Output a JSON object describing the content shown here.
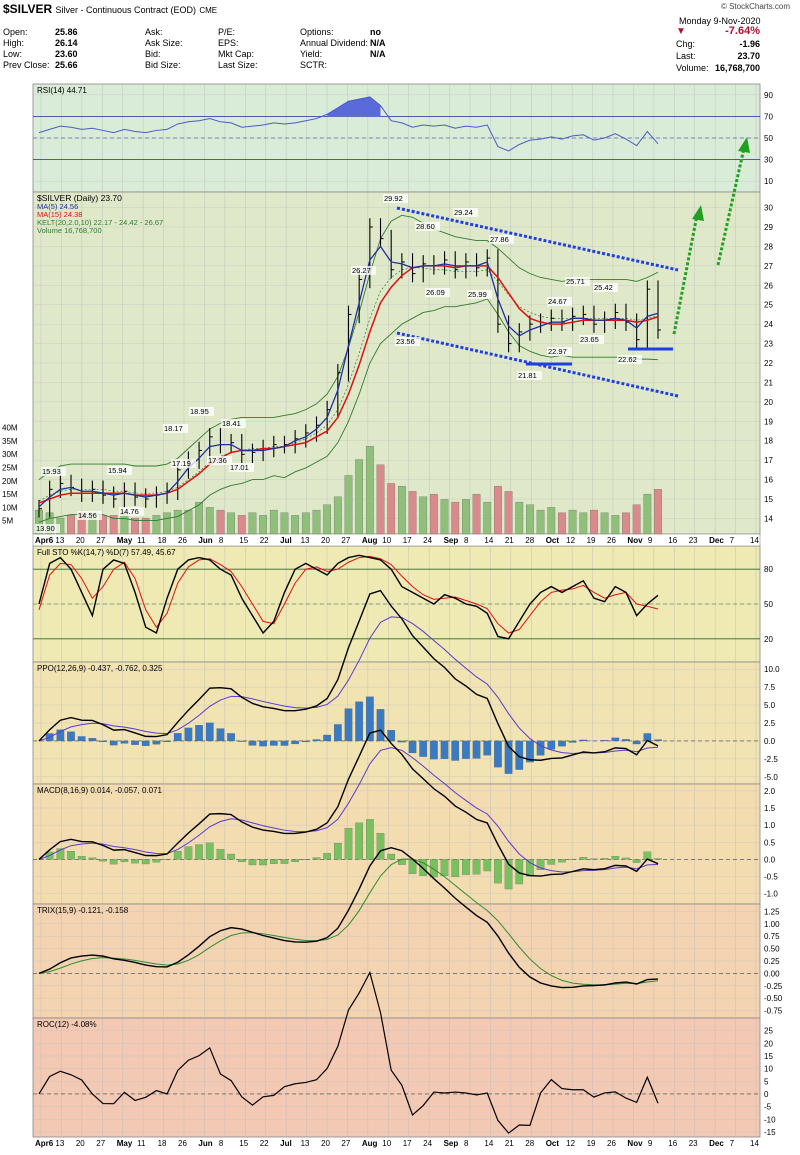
{
  "header": {
    "symbol": "$SILVER",
    "description": "Silver - Continuous Contract (EOD)",
    "exchange": "CME",
    "watermark": "© StockCharts.com",
    "date": "Monday  9-Nov-2020",
    "change_pct": "-7.64%",
    "chg_label": "Chg:",
    "chg_value": "-1.96",
    "last_label": "Last:",
    "last_value": "23.70",
    "volume_label": "Volume:",
    "volume_value": "16,768,700",
    "quote": [
      {
        "label": "Open:",
        "value": "25.86"
      },
      {
        "label": "High:",
        "value": "26.14"
      },
      {
        "label": "Low:",
        "value": "23.60"
      },
      {
        "label": "Prev Close:",
        "value": "25.66"
      }
    ],
    "ask": [
      {
        "label": "Ask:",
        "value": ""
      },
      {
        "label": "Ask Size:",
        "value": ""
      },
      {
        "label": "Bid:",
        "value": ""
      },
      {
        "label": "Bid Size:",
        "value": ""
      }
    ],
    "fund": [
      {
        "label": "P/E:",
        "value": ""
      },
      {
        "label": "EPS:",
        "value": ""
      },
      {
        "label": "Mkt Cap:",
        "value": ""
      },
      {
        "label": "Last Size:",
        "value": ""
      }
    ],
    "opts": [
      {
        "label": "Options:",
        "value": "no"
      },
      {
        "label": "Annual Dividend:",
        "value": "N/A"
      },
      {
        "label": "Yield:",
        "value": "N/A"
      },
      {
        "label": "SCTR:",
        "value": ""
      }
    ]
  },
  "colors": {
    "rsi_bg": "#d9ecd8",
    "price_bg": "#dfe9c9",
    "sto_bg": "#efeab4",
    "ppo_bg": "#f2e3b2",
    "macd_bg": "#f3dcb0",
    "trix_bg": "#f4d3b0",
    "roc_bg": "#f3c9b4",
    "price_bar": "#000000",
    "ma5": "#1f2fa0",
    "ma15": "#e01010",
    "kelt": "#2f7a2f",
    "vol_up": "#8fbf7a",
    "vol_down": "#d98a8a",
    "channel": "#1f3fe0",
    "arrow": "#22a022",
    "rsi_line": "#4a5cc8",
    "rsi_fill": "#5a6ad8",
    "sto_k": "#000000",
    "sto_d": "#e01010",
    "ppo_hist": "#3a7ac0",
    "macd_hist": "#7ac060",
    "signal": "#5a3ad0",
    "trix_signal": "#2f8a2f"
  },
  "x_axis": {
    "labels": [
      "Apr6",
      "13",
      "20",
      "27",
      "May",
      "11",
      "18",
      "26",
      "Jun",
      "8",
      "15",
      "22",
      "Jul",
      "13",
      "20",
      "27",
      "Aug",
      "10",
      "17",
      "24",
      "Sep",
      "8",
      "14",
      "21",
      "28",
      "Oct",
      "12",
      "19",
      "26",
      "Nov",
      "9",
      "16",
      "23",
      "Dec",
      "7",
      "14"
    ],
    "bold": [
      "Apr6",
      "May",
      "Jun",
      "Jul",
      "Aug",
      "Sep",
      "Oct",
      "Nov",
      "Dec"
    ]
  },
  "panels": {
    "rsi": {
      "legend": "RSI(14) 44.71",
      "ticks": [
        "90",
        "70",
        "50",
        "30",
        "10"
      ],
      "overbought": "70",
      "oversold": "30"
    },
    "price": {
      "legend": [
        {
          "text": "$SILVER (Daily) 23.70",
          "color": "#000000"
        },
        {
          "text": "MA(5) 24.56",
          "color": "#1f2fa0"
        },
        {
          "text": "MA(15) 24.38",
          "color": "#e01010"
        },
        {
          "text": "KELT(20,2.0,10) 22.17 - 24.42 - 26.67",
          "color": "#2f7a2f"
        },
        {
          "text": "Volume 16,768,700",
          "color": "#2f7a2f"
        }
      ],
      "ticks": [
        "30",
        "29",
        "28",
        "27",
        "26",
        "25",
        "24",
        "23",
        "22",
        "21",
        "20",
        "19",
        "18",
        "17",
        "16",
        "15",
        "14"
      ],
      "vol_ticks": [
        "40M",
        "35M",
        "30M",
        "25M",
        "20M",
        "15M",
        "10M",
        "5M"
      ]
    },
    "sto": {
      "legend": "Full STO %K(14,7) %D(7) 57.49, 45.67",
      "ticks": [
        "80",
        "50",
        "20"
      ]
    },
    "ppo": {
      "legend": "PPO(12,26,9) -0.437, -0.762, 0.325",
      "ticks": [
        "10.0",
        "7.5",
        "5.0",
        "2.5",
        "0.0",
        "-2.5",
        "-5.0"
      ]
    },
    "macd": {
      "legend": "MACD(8,16,9) 0.014, -0.057, 0.071",
      "ticks": [
        "2.0",
        "1.5",
        "1.0",
        "0.5",
        "0.0",
        "-0.5",
        "-1.0"
      ]
    },
    "trix": {
      "legend": "TRIX(15,9) -0.121, -0.158",
      "ticks": [
        "1.25",
        "1.00",
        "0.75",
        "0.50",
        "0.25",
        "0.00",
        "-0.25",
        "-0.50",
        "-0.75"
      ]
    },
    "roc": {
      "legend": "ROC(12) -4.08%",
      "ticks": [
        "25",
        "20",
        "15",
        "10",
        "5",
        "0",
        "-5",
        "-10",
        "-15"
      ]
    }
  },
  "chart_data": {
    "type": "line",
    "title": "$SILVER Silver - Continuous Contract (EOD) CME",
    "x_start": "2020-04-06",
    "x_end": "2020-11-09",
    "price_labels": [
      "13.90",
      "15.93",
      "14.56",
      "15.94",
      "14.76",
      "18.17",
      "17.19",
      "18.95",
      "18.41",
      "17.36",
      "17.01",
      "26.27",
      "29.92",
      "28.60",
      "29.24",
      "23.56",
      "26.09",
      "25.99",
      "27.86",
      "21.81",
      "22.97",
      "24.67",
      "25.71",
      "23.65",
      "25.42",
      "22.62"
    ],
    "series": [
      {
        "name": "$SILVER (Daily)",
        "values": [
          14.5,
          15.5,
          15.8,
          15.6,
          15.3,
          15.5,
          15.2,
          15.0,
          15.4,
          15.1,
          15.0,
          15.2,
          15.4,
          16.5,
          17.0,
          17.5,
          18.2,
          17.8,
          17.9,
          17.3,
          17.4,
          17.6,
          17.8,
          17.8,
          18.1,
          18.4,
          18.8,
          19.6,
          21.5,
          24.5,
          26.3,
          29.0,
          28.4,
          26.8,
          27.2,
          26.6,
          27.1,
          27.0,
          27.3,
          26.8,
          27.2,
          26.9,
          27.4,
          24.0,
          23.0,
          23.6,
          24.0,
          24.1,
          24.3,
          24.1,
          24.4,
          24.5,
          24.0,
          24.2,
          24.6,
          24.1,
          23.2,
          25.8,
          23.7
        ]
      },
      {
        "name": "MA(5)",
        "values": [
          14.6,
          15.1,
          15.5,
          15.6,
          15.4,
          15.4,
          15.3,
          15.2,
          15.3,
          15.2,
          15.1,
          15.2,
          15.3,
          15.9,
          16.6,
          17.1,
          17.7,
          17.8,
          17.8,
          17.5,
          17.5,
          17.5,
          17.6,
          17.7,
          18.0,
          18.2,
          18.6,
          19.2,
          20.6,
          22.9,
          25.1,
          27.3,
          28.0,
          27.2,
          27.1,
          26.9,
          27.0,
          27.0,
          27.1,
          27.0,
          27.0,
          27.0,
          27.2,
          25.3,
          23.9,
          23.4,
          23.7,
          23.9,
          24.1,
          24.1,
          24.3,
          24.3,
          24.2,
          24.2,
          24.3,
          24.2,
          23.8,
          24.4,
          24.56
        ]
      },
      {
        "name": "MA(15)",
        "values": [
          14.8,
          15.0,
          15.2,
          15.3,
          15.3,
          15.3,
          15.3,
          15.3,
          15.3,
          15.2,
          15.2,
          15.2,
          15.3,
          15.5,
          15.9,
          16.3,
          16.8,
          17.1,
          17.4,
          17.5,
          17.5,
          17.6,
          17.6,
          17.7,
          17.8,
          17.9,
          18.2,
          18.5,
          19.2,
          20.4,
          21.9,
          23.6,
          25.1,
          25.9,
          26.5,
          26.9,
          27.0,
          27.0,
          27.0,
          26.9,
          27.0,
          27.0,
          27.0,
          26.4,
          25.6,
          24.8,
          24.3,
          24.1,
          24.0,
          24.0,
          24.1,
          24.2,
          24.2,
          24.2,
          24.2,
          24.2,
          24.1,
          24.2,
          24.38
        ]
      },
      {
        "name": "KELT upper",
        "values": [
          16.0,
          16.4,
          16.7,
          16.8,
          16.8,
          16.8,
          16.8,
          16.8,
          16.8,
          16.7,
          16.7,
          16.7,
          16.8,
          17.1,
          17.6,
          18.1,
          18.6,
          18.9,
          19.1,
          19.2,
          19.2,
          19.2,
          19.2,
          19.3,
          19.4,
          19.6,
          19.9,
          20.4,
          21.3,
          22.8,
          24.6,
          26.6,
          28.4,
          29.3,
          29.6,
          29.5,
          29.2,
          28.9,
          28.7,
          28.5,
          28.4,
          28.3,
          28.3,
          27.9,
          27.4,
          26.9,
          26.6,
          26.4,
          26.3,
          26.2,
          26.3,
          26.3,
          26.3,
          26.3,
          26.3,
          26.3,
          26.2,
          26.4,
          26.67
        ]
      },
      {
        "name": "KELT middle",
        "values": [
          14.9,
          15.2,
          15.4,
          15.5,
          15.5,
          15.5,
          15.5,
          15.4,
          15.4,
          15.3,
          15.3,
          15.3,
          15.4,
          15.6,
          16.0,
          16.4,
          16.9,
          17.2,
          17.4,
          17.5,
          17.6,
          17.6,
          17.7,
          17.7,
          17.9,
          18.1,
          18.4,
          18.8,
          19.6,
          20.9,
          22.5,
          24.3,
          25.7,
          26.4,
          26.8,
          26.9,
          26.9,
          26.8,
          26.8,
          26.7,
          26.7,
          26.7,
          26.8,
          26.2,
          25.5,
          24.9,
          24.6,
          24.4,
          24.3,
          24.3,
          24.3,
          24.3,
          24.3,
          24.3,
          24.3,
          24.3,
          24.2,
          24.3,
          24.42
        ]
      },
      {
        "name": "KELT lower",
        "values": [
          13.8,
          14.0,
          14.1,
          14.2,
          14.2,
          14.2,
          14.2,
          14.0,
          14.0,
          13.9,
          13.9,
          13.9,
          14.0,
          14.1,
          14.4,
          14.7,
          15.2,
          15.5,
          15.7,
          15.8,
          16.0,
          16.0,
          16.2,
          16.1,
          16.4,
          16.6,
          16.9,
          17.2,
          17.9,
          19.0,
          20.4,
          22.0,
          23.0,
          23.5,
          24.0,
          24.3,
          24.6,
          24.7,
          24.9,
          24.9,
          25.0,
          25.1,
          25.3,
          24.5,
          23.6,
          22.9,
          22.6,
          22.4,
          22.3,
          22.4,
          22.3,
          22.3,
          22.3,
          22.3,
          22.3,
          22.3,
          22.2,
          22.2,
          22.17
        ]
      }
    ],
    "volume_values_m": [
      9,
      8,
      6,
      7,
      8,
      6,
      7,
      7,
      8,
      6,
      6,
      7,
      8,
      9,
      9,
      12,
      10,
      9,
      8,
      7,
      8,
      7,
      9,
      8,
      7,
      8,
      9,
      11,
      14,
      22,
      28,
      33,
      26,
      19,
      18,
      16,
      14,
      15,
      13,
      12,
      13,
      15,
      12,
      18,
      16,
      12,
      11,
      9,
      10,
      8,
      9,
      8,
      9,
      8,
      7,
      8,
      11,
      15,
      16.8
    ],
    "rsi_values": [
      55,
      58,
      61,
      60,
      58,
      59,
      57,
      55,
      58,
      56,
      55,
      57,
      58,
      63,
      65,
      66,
      68,
      65,
      64,
      60,
      61,
      62,
      64,
      63,
      64,
      66,
      68,
      72,
      78,
      84,
      86,
      88,
      80,
      66,
      64,
      60,
      62,
      61,
      62,
      59,
      61,
      60,
      62,
      42,
      38,
      44,
      48,
      49,
      51,
      49,
      52,
      53,
      48,
      50,
      54,
      49,
      43,
      56,
      44.71
    ],
    "sto_k": [
      50,
      85,
      90,
      80,
      60,
      40,
      80,
      88,
      85,
      60,
      30,
      25,
      55,
      80,
      88,
      90,
      88,
      80,
      75,
      55,
      40,
      25,
      35,
      60,
      80,
      85,
      80,
      75,
      85,
      90,
      92,
      90,
      88,
      80,
      65,
      60,
      55,
      50,
      58,
      55,
      50,
      48,
      42,
      22,
      20,
      35,
      50,
      60,
      65,
      60,
      65,
      70,
      55,
      52,
      65,
      60,
      40,
      50,
      57.49
    ],
    "sto_d": [
      45,
      75,
      85,
      84,
      72,
      55,
      65,
      80,
      86,
      72,
      45,
      30,
      42,
      68,
      82,
      88,
      89,
      84,
      78,
      65,
      50,
      35,
      33,
      50,
      68,
      80,
      82,
      78,
      80,
      86,
      90,
      91,
      89,
      84,
      74,
      65,
      58,
      54,
      55,
      56,
      53,
      50,
      46,
      33,
      25,
      28,
      40,
      52,
      60,
      62,
      63,
      66,
      60,
      55,
      58,
      60,
      50,
      48,
      45.67
    ]
  }
}
